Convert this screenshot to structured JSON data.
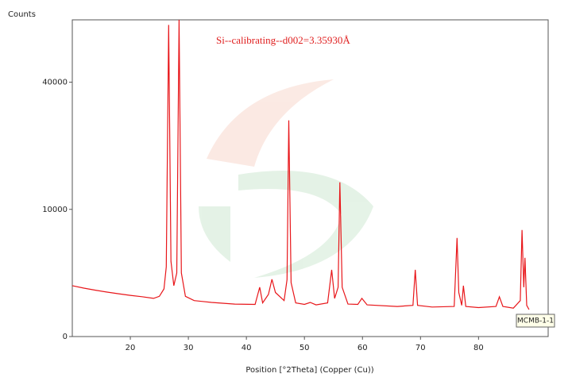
{
  "chart_data": {
    "type": "line",
    "y_label": "Counts",
    "x_label": "Position [°2Theta] (Copper (Cu))",
    "annotation": "Si--calibrating--d002=3.35930Å",
    "yscale": "sqrt",
    "xlim": [
      10,
      92
    ],
    "ylim": [
      0,
      62000
    ],
    "xticks": [
      20,
      30,
      40,
      50,
      60,
      70,
      80
    ],
    "yticks": [
      0,
      10000,
      40000
    ],
    "x": [
      10,
      12,
      14,
      16,
      18,
      20,
      22,
      24,
      25,
      25.8,
      26.2,
      26.6,
      27,
      27.5,
      28.0,
      28.4,
      28.8,
      29.5,
      31,
      34,
      38,
      41.5,
      42.3,
      42.8,
      43.8,
      44.4,
      45,
      46.5,
      47.0,
      47.3,
      47.7,
      48.5,
      50,
      51,
      52,
      54,
      54.7,
      55.2,
      55.8,
      56.1,
      56.5,
      57.5,
      59.2,
      59.9,
      60.8,
      66,
      68.7,
      69.1,
      69.5,
      72,
      75.8,
      76.3,
      76.6,
      77.1,
      77.4,
      77.8,
      80,
      83,
      83.6,
      84.2,
      86,
      87.2,
      87.5,
      87.8,
      88,
      88.3,
      88.7
    ],
    "series": [
      {
        "name": "MCMB-1-1",
        "color": "#e8161a",
        "values": [
          1600,
          1450,
          1330,
          1220,
          1130,
          1050,
          980,
          900,
          1000,
          1400,
          3000,
          60025,
          3500,
          1600,
          2500,
          62000,
          2500,
          1000,
          800,
          720,
          650,
          640,
          1501,
          700,
          1100,
          2025,
          1200,
          800,
          2000,
          28900,
          1800,
          700,
          640,
          720,
          620,
          700,
          2756,
          900,
          1500,
          14701,
          1500,
          650,
          640,
          900,
          620,
          560,
          600,
          2756,
          600,
          540,
          560,
          6006,
          1200,
          600,
          1600,
          560,
          520,
          560,
          977,
          560,
          500,
          800,
          7014,
          1500,
          3829,
          600,
          450
        ]
      }
    ]
  }
}
